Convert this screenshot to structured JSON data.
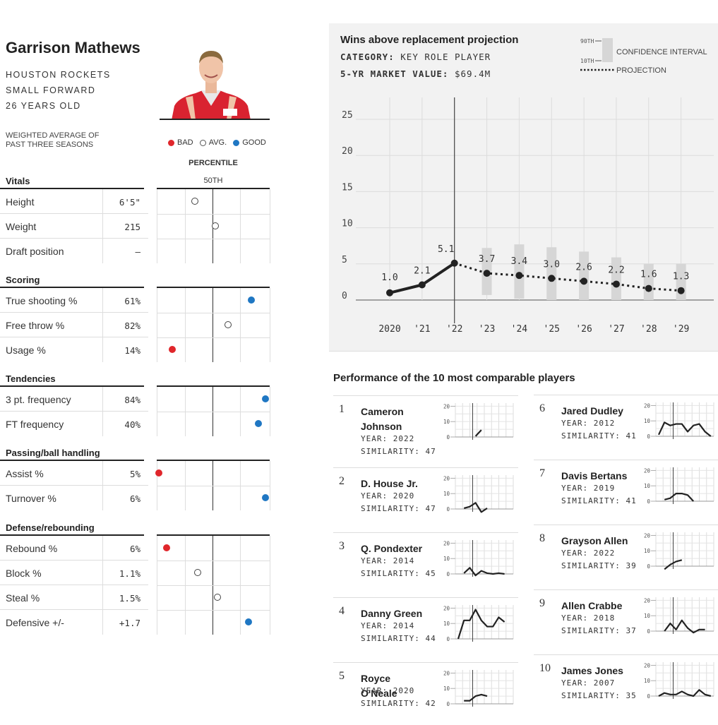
{
  "player": {
    "name": "Garrison Mathews",
    "team": "HOUSTON ROCKETS",
    "position": "SMALL FORWARD",
    "age": "26 YEARS OLD",
    "weighted_note_line1": "WEIGHTED AVERAGE OF",
    "weighted_note_line2": "PAST THREE SEASONS"
  },
  "legend": {
    "bad": "BAD",
    "avg": "AVG.",
    "good": "GOOD",
    "percentile": "PERCENTILE",
    "fiftieth": "50TH"
  },
  "colors": {
    "bad": "#e0262b",
    "good": "#1f77c3",
    "avg": "#ffffff",
    "line": "#222222",
    "band": "#d6d6d6"
  },
  "sections": [
    {
      "title": "Vitals",
      "rows": [
        {
          "label": "Height",
          "value": "6'5\"",
          "percentile": 34,
          "rating": "avg"
        },
        {
          "label": "Weight",
          "value": "215",
          "percentile": 52,
          "rating": "avg"
        },
        {
          "label": "Draft position",
          "value": "–",
          "percentile": null,
          "rating": null
        }
      ]
    },
    {
      "title": "Scoring",
      "rows": [
        {
          "label": "True shooting %",
          "value": "61%",
          "percentile": 84,
          "rating": "good"
        },
        {
          "label": "Free throw %",
          "value": "82%",
          "percentile": 63,
          "rating": "avg"
        },
        {
          "label": "Usage %",
          "value": "14%",
          "percentile": 14,
          "rating": "bad"
        }
      ]
    },
    {
      "title": "Tendencies",
      "rows": [
        {
          "label": "3 pt. frequency",
          "value": "84%",
          "percentile": 96,
          "rating": "good"
        },
        {
          "label": "FT frequency",
          "value": "40%",
          "percentile": 90,
          "rating": "good"
        }
      ]
    },
    {
      "title": "Passing/ball handling",
      "rows": [
        {
          "label": "Assist %",
          "value": "5%",
          "percentile": 2,
          "rating": "bad"
        },
        {
          "label": "Turnover %",
          "value": "6%",
          "percentile": 96,
          "rating": "good"
        }
      ]
    },
    {
      "title": "Defense/rebounding",
      "rows": [
        {
          "label": "Rebound %",
          "value": "6%",
          "percentile": 9,
          "rating": "bad"
        },
        {
          "label": "Block %",
          "value": "1.1%",
          "percentile": 36,
          "rating": "avg"
        },
        {
          "label": "Steal %",
          "value": "1.5%",
          "percentile": 54,
          "rating": "avg"
        },
        {
          "label": "Defensive +/-",
          "value": "+1.7",
          "percentile": 81,
          "rating": "good"
        }
      ]
    }
  ],
  "war_chart": {
    "title": "Wins above replacement projection",
    "category_label": "CATEGORY:",
    "category_value": "KEY ROLE PLAYER",
    "market_label": "5-YR MARKET VALUE:",
    "market_value": "$69.4M",
    "legend_90th": "90TH",
    "legend_10th": "10TH",
    "legend_ci": "CONFIDENCE INTERVAL",
    "legend_proj": "PROJECTION"
  },
  "chart_data": {
    "type": "line",
    "x": [
      "2020",
      "'21",
      "'22",
      "'23",
      "'24",
      "'25",
      "'26",
      "'27",
      "'28",
      "'29"
    ],
    "series": [
      {
        "name": "Actual",
        "values": [
          1.0,
          2.1,
          5.1,
          null,
          null,
          null,
          null,
          null,
          null,
          null
        ]
      },
      {
        "name": "PROJECTION",
        "values": [
          null,
          null,
          5.1,
          3.7,
          3.4,
          3.0,
          2.6,
          2.2,
          1.6,
          1.3
        ]
      }
    ],
    "confidence_interval": {
      "name": "CONFIDENCE INTERVAL",
      "low": [
        null,
        null,
        null,
        0.7,
        0.2,
        0.0,
        0.0,
        0.0,
        0.0,
        0.0
      ],
      "high": [
        null,
        null,
        null,
        7.2,
        7.7,
        7.3,
        6.7,
        5.9,
        5.0,
        5.0
      ]
    },
    "data_labels": [
      "1.0",
      "2.1",
      "5.1",
      "3.7",
      "3.4",
      "3.0",
      "2.6",
      "2.2",
      "1.6",
      "1.3"
    ],
    "yticks": [
      "0",
      "5",
      "10",
      "15",
      "20",
      "25"
    ],
    "ylim": [
      0,
      27
    ],
    "grid": true
  },
  "comparables": {
    "title": "Performance of the 10 most comparable players",
    "year_label": "YEAR:",
    "sim_label": "SIMILARITY:",
    "spark_ticks": [
      "20",
      "10",
      "0"
    ],
    "players": [
      {
        "rank": "1",
        "name": "Cameron Johnson",
        "year": "2022",
        "similarity": "47",
        "war": [
          null,
          null,
          null,
          0.5,
          4.5
        ]
      },
      {
        "rank": "2",
        "name": "D. House Jr.",
        "year": "2020",
        "similarity": "47",
        "war": [
          null,
          0.5,
          1.5,
          4,
          -2,
          0.5
        ]
      },
      {
        "rank": "3",
        "name": "Q. Pondexter",
        "year": "2014",
        "similarity": "45",
        "war": [
          null,
          0.5,
          4,
          -1,
          2,
          0.5,
          0,
          0.5,
          0
        ]
      },
      {
        "rank": "4",
        "name": "Danny Green",
        "year": "2014",
        "similarity": "44",
        "war": [
          0,
          12,
          12,
          19,
          12,
          8,
          8,
          14,
          11
        ]
      },
      {
        "rank": "5",
        "name": "Royce O'Neale",
        "year": "2020",
        "similarity": "42",
        "war": [
          null,
          2,
          2,
          5,
          6,
          5
        ]
      },
      {
        "rank": "6",
        "name": "Jared Dudley",
        "year": "2012",
        "similarity": "41",
        "war": [
          1,
          9,
          7,
          8,
          8,
          3,
          7,
          8,
          3,
          0
        ]
      },
      {
        "rank": "7",
        "name": "Davis Bertans",
        "year": "2019",
        "similarity": "41",
        "war": [
          null,
          1,
          2,
          5,
          5,
          4,
          0
        ]
      },
      {
        "rank": "8",
        "name": "Grayson Allen",
        "year": "2022",
        "similarity": "39",
        "war": [
          null,
          -2,
          1,
          3,
          4
        ]
      },
      {
        "rank": "9",
        "name": "Allen Crabbe",
        "year": "2018",
        "similarity": "37",
        "war": [
          null,
          0,
          5,
          1,
          7,
          2,
          -1,
          1,
          1
        ]
      },
      {
        "rank": "10",
        "name": "James Jones",
        "year": "2007",
        "similarity": "35",
        "war": [
          0,
          2,
          1,
          1,
          3,
          1,
          0,
          4,
          1,
          0
        ]
      }
    ]
  }
}
